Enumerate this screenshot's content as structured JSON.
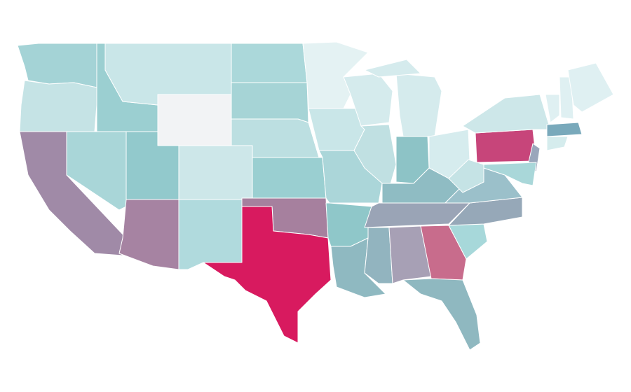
{
  "map": {
    "regions": [
      {
        "color": "#a4d3d6"
      },
      {
        "color": "#c5e3e5"
      },
      {
        "color": "#a08aa7"
      },
      {
        "color": "#a9d6d8"
      },
      {
        "color": "#9bcfd1"
      },
      {
        "color": "#c9e6e8"
      },
      {
        "color": "#f2f3f5"
      },
      {
        "color": "#92c9cc"
      },
      {
        "color": "#a683a2"
      },
      {
        "color": "#cde7e9"
      },
      {
        "color": "#b0dadd"
      },
      {
        "color": "#abd8da"
      },
      {
        "color": "#a6d4d6"
      },
      {
        "color": "#bcdfe1"
      },
      {
        "color": "#9acfd1"
      },
      {
        "color": "#a6809e"
      },
      {
        "color": "#d81a5f"
      },
      {
        "color": "#e4f2f3"
      },
      {
        "color": "#c9e6e8"
      },
      {
        "color": "#abd6d9"
      },
      {
        "color": "#8fc7c9"
      },
      {
        "color": "#8fb9c1"
      },
      {
        "color": "#d5ebed"
      },
      {
        "color": "#c0e0e2"
      },
      {
        "color": "#d5ebed"
      },
      {
        "color": "#8dc3c6"
      },
      {
        "color": "#d6ecee"
      },
      {
        "color": "#8fbcc3"
      },
      {
        "color": "#9aa4b6"
      },
      {
        "color": "#92b4bf"
      },
      {
        "color": "#a7a0b5"
      },
      {
        "color": "#c86c8c"
      },
      {
        "color": "#8fb8c0"
      },
      {
        "color": "#a7d8da"
      },
      {
        "color": "#96a8b8"
      },
      {
        "color": "#9bc0ca"
      },
      {
        "color": "#c5e3e5"
      },
      {
        "color": "#c7457a"
      },
      {
        "color": "#cde7e9"
      },
      {
        "color": "#9aa6bb"
      },
      {
        "color": "#a9d7d9"
      },
      {
        "color": "#dff0f2"
      },
      {
        "color": "#dff0f2"
      },
      {
        "color": "#dff0f2"
      },
      {
        "color": "#79a9bb"
      },
      {
        "color": "#d5eced"
      },
      {
        "color": "#d5ebed"
      }
    ]
  }
}
